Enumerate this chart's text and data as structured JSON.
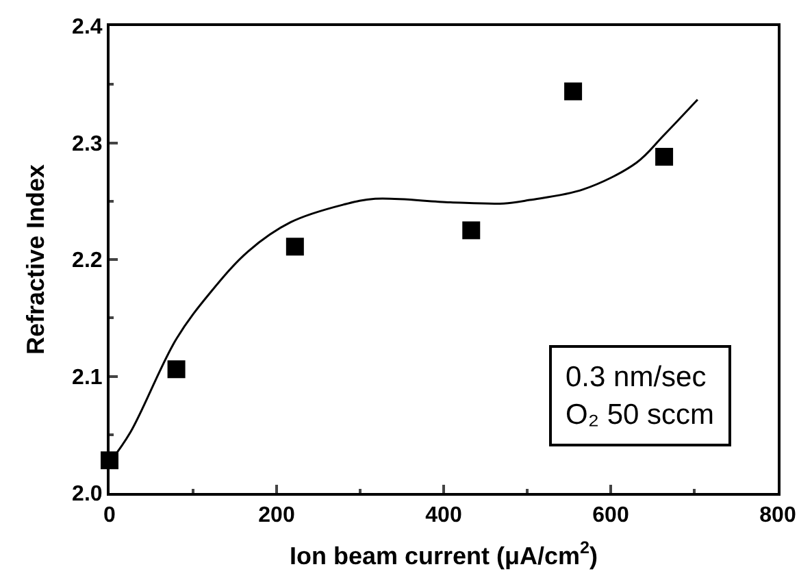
{
  "chart_data": {
    "type": "scatter",
    "xlabel": "Ion beam current (μA/cm$^{2}$)",
    "ylabel": "Refractive Index",
    "xlim": [
      0,
      800
    ],
    "xticks": [
      0,
      200,
      400,
      600,
      800
    ],
    "ylim": [
      2.0,
      2.4
    ],
    "yticks": [
      {
        "value": 2.0,
        "label": "2.0"
      },
      2.1,
      2.2,
      2.3,
      2.4
    ],
    "marker": "square",
    "grid": false,
    "legend": false,
    "series": [
      {
        "color": "#000000",
        "x": [
          0,
          80,
          222,
          433,
          555,
          664
        ],
        "values": [
          2.028,
          2.106,
          2.211,
          2.225,
          2.344,
          2.288
        ]
      },
      {
        "type": "line",
        "color": "#000000",
        "line_style": "solid",
        "marker": "none",
        "x": [
          0,
          25,
          80,
          121,
          166,
          217,
          280,
          318,
          408,
          472,
          503,
          567,
          631,
          663,
          704
        ],
        "values": [
          2.026,
          2.052,
          2.132,
          2.172,
          2.207,
          2.232,
          2.247,
          2.252,
          2.249,
          2.248,
          2.251,
          2.26,
          2.283,
          2.306,
          2.337
        ]
      }
    ],
    "annotations": [
      "0.3 nm/sec\nO₂ 50 sccm"
    ]
  }
}
